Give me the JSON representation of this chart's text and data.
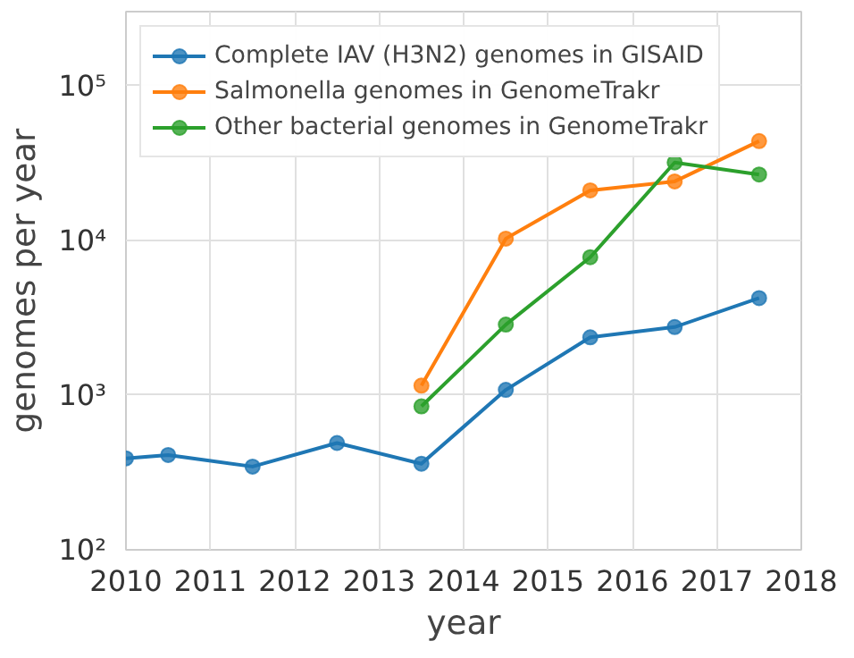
{
  "chart_data": {
    "type": "line",
    "xlabel": "year",
    "ylabel": "genomes per year",
    "log": "y",
    "grid": true,
    "legend": "top left",
    "marker": "circle",
    "line_style": "solid",
    "xlim": [
      2010,
      2018
    ],
    "xticks": [
      2010,
      2011,
      2012,
      2013,
      2014,
      2015,
      2016,
      2017,
      2018
    ],
    "ylim": [
      100,
      300000
    ],
    "yticks": [
      {
        "value": 100,
        "label": "10²"
      },
      {
        "value": 1000,
        "label": "10³"
      },
      {
        "value": 10000,
        "label": "10⁴"
      },
      {
        "value": 100000,
        "label": "10⁵"
      }
    ],
    "series": [
      {
        "name": "Complete IAV (H3N2) genomes in GISAID",
        "color": "#1f77b4",
        "x": [
          2010,
          2010.5,
          2011.5,
          2012.5,
          2013.5,
          2014.5,
          2015.5,
          2016.5,
          2017.5
        ],
        "values": [
          390,
          410,
          345,
          490,
          360,
          1080,
          2360,
          2750,
          4230
        ]
      },
      {
        "name": "Salmonella genomes in GenomeTrakr",
        "color": "#ff7f0e",
        "x": [
          2013.5,
          2014.5,
          2015.5,
          2016.5,
          2017.5
        ],
        "values": [
          1150,
          10250,
          21000,
          24000,
          43700
        ]
      },
      {
        "name": "Other bacterial genomes in GenomeTrakr",
        "color": "#2ca02c",
        "x": [
          2013.5,
          2014.5,
          2015.5,
          2016.5,
          2017.5
        ],
        "values": [
          845,
          2850,
          7770,
          31800,
          26600
        ]
      }
    ]
  }
}
